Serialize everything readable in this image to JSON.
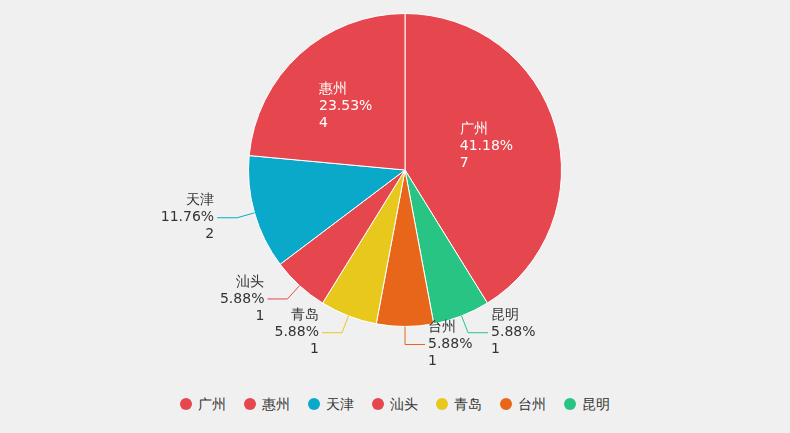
{
  "chart_data": {
    "type": "pie",
    "categories": [
      "广州",
      "惠州",
      "天津",
      "汕头",
      "青岛",
      "台州",
      "昆明"
    ],
    "values": [
      7,
      4,
      2,
      1,
      1,
      1,
      1
    ],
    "percentages": [
      41.18,
      23.53,
      11.76,
      5.88,
      5.88,
      5.88,
      5.88
    ],
    "percentage_labels": [
      "41.18%",
      "23.53%",
      "11.76%",
      "5.88%",
      "5.88%",
      "5.88%",
      "5.88%"
    ],
    "colors": [
      "#e6474e",
      "#e6474e",
      "#0aa9c9",
      "#e6474e",
      "#e8c81c",
      "#e8661a",
      "#27c484"
    ],
    "data_labels": true,
    "legend": "bottom"
  }
}
